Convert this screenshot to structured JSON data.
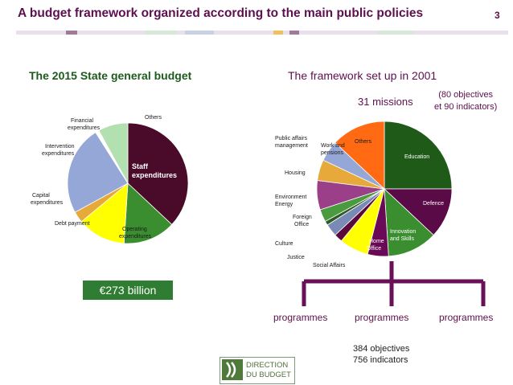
{
  "header": {
    "title": "A budget framework organized according to the main public policies",
    "page_number": "3"
  },
  "left": {
    "heading": "The 2015 State general budget",
    "amount": "€273 billion",
    "pie": {
      "slices": [
        {
          "label": "Staff expenditures",
          "share": 0.37,
          "color": "#4a0b2a"
        },
        {
          "label": "Operating expenditures",
          "share": 0.14,
          "color": "#3b8e30"
        },
        {
          "label": "Debt payment",
          "share": 0.13,
          "color": "#ffff00"
        },
        {
          "label": "Capital expenditures",
          "share": 0.03,
          "color": "#e6a93a"
        },
        {
          "label": "Intervention expenditures",
          "share": 0.24,
          "color": "#94a7d6"
        },
        {
          "label": "Financial expenditures",
          "share": 0.01,
          "color": "#ffffff"
        },
        {
          "label": "Others",
          "share": 0.08,
          "color": "#b3e0b0"
        }
      ]
    }
  },
  "right": {
    "heading": "The framework set up in 2001",
    "missions": "31 missions",
    "objectives_note_line1": "(80 objectives",
    "objectives_note_line2": "et 90 indicators)",
    "pie": {
      "slices": [
        {
          "label": "Education",
          "share": 0.25,
          "color": "#1f5a18"
        },
        {
          "label": "Defence",
          "share": 0.12,
          "color": "#5a0a46"
        },
        {
          "label": "Innovation and Skills",
          "share": 0.12,
          "color": "#3a8e30"
        },
        {
          "label": "Home Office",
          "share": 0.05,
          "color": "#6a0a56"
        },
        {
          "label": "Social Affairs",
          "share": 0.07,
          "color": "#ffff00"
        },
        {
          "label": "Justice",
          "share": 0.02,
          "color": "#5a0a3a"
        },
        {
          "label": "Culture",
          "share": 0.03,
          "color": "#7a8ab6"
        },
        {
          "label": "Foreign Office",
          "share": 0.01,
          "color": "#2f5a26"
        },
        {
          "label": "Environment Energy",
          "share": 0.03,
          "color": "#4a9a40"
        },
        {
          "label": "Housing",
          "share": 0.07,
          "color": "#9a3f88"
        },
        {
          "label": "Public affairs management",
          "share": 0.05,
          "color": "#e6a93a"
        },
        {
          "label": "Work and pensions",
          "share": 0.05,
          "color": "#94a7d6"
        },
        {
          "label": "Others",
          "share": 0.13,
          "color": "#ff6a13"
        }
      ]
    },
    "programmes": [
      "programmes",
      "programmes",
      "programmes"
    ],
    "stats_line1": "384 objectives",
    "stats_line2": "756 indicators"
  },
  "logo": {
    "line1": "DIRECTION",
    "line2": "DU BUDGET"
  },
  "colors": {
    "title": "#5e0f4f",
    "heading_left": "#1e5a1e",
    "bracket": "#6a1058"
  }
}
